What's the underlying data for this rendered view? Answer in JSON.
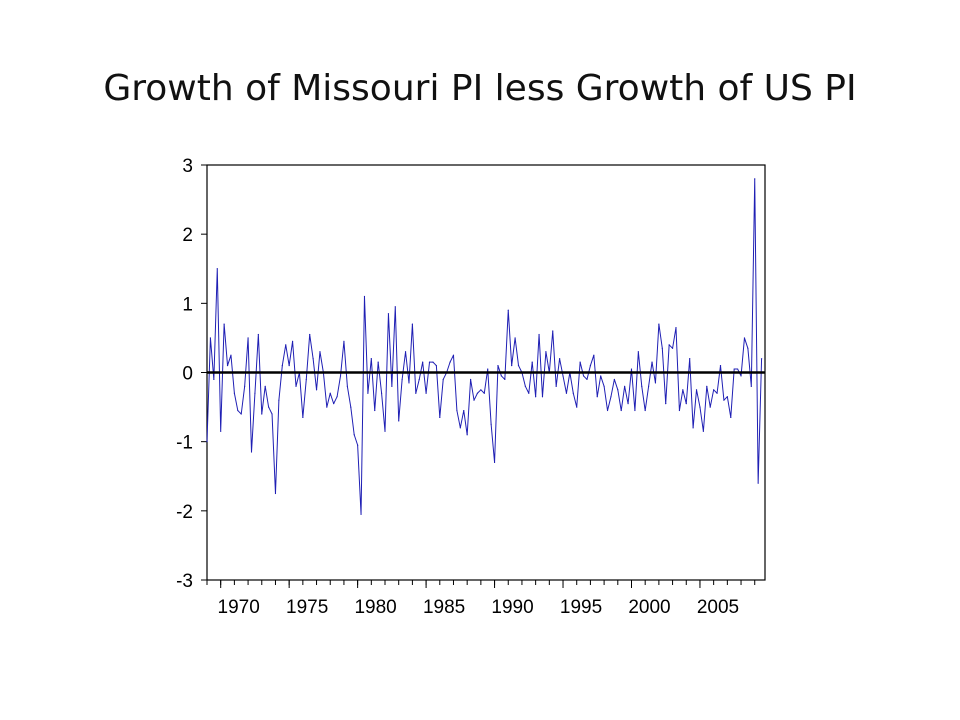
{
  "slide": {
    "title": "Growth of Missouri PI less Growth of US PI"
  },
  "colors": {
    "series": "#1f1fb4",
    "zero_line": "#000000",
    "frame": "#000000"
  },
  "chart_data": {
    "type": "line",
    "title": "Growth of Missouri PI less Growth of US PI",
    "xlabel": "",
    "ylabel": "",
    "xlim": [
      1969.0,
      2009.75
    ],
    "ylim": [
      -3,
      3
    ],
    "yticks": [
      3,
      2,
      1,
      0,
      -1,
      -2,
      -3
    ],
    "ytick_labels": [
      "3",
      "2",
      "1",
      "0",
      "-1",
      "-2",
      "-3"
    ],
    "xtick_labels": [
      "1970",
      "1975",
      "1980",
      "1985",
      "1990",
      "1995",
      "2000",
      "2005"
    ],
    "xtick_values": [
      1970,
      1975,
      1980,
      1985,
      1990,
      1995,
      2000,
      2005
    ],
    "frequency": "quarterly",
    "grid": false,
    "reference_line": 0,
    "series": [
      {
        "start": 1969.0,
        "step": 0.25,
        "values": [
          -1.0,
          0.5,
          -0.1,
          1.5,
          -0.85,
          0.7,
          0.1,
          0.25,
          -0.3,
          -0.55,
          -0.6,
          -0.2,
          0.5,
          -1.15,
          -0.3,
          0.55,
          -0.6,
          -0.2,
          -0.5,
          -0.6,
          -1.75,
          -0.4,
          0.1,
          0.4,
          0.1,
          0.45,
          -0.2,
          0.0,
          -0.65,
          -0.1,
          0.55,
          0.2,
          -0.25,
          0.3,
          0.0,
          -0.5,
          -0.3,
          -0.45,
          -0.35,
          -0.05,
          0.45,
          -0.2,
          -0.5,
          -0.9,
          -1.05,
          -2.05,
          1.1,
          -0.3,
          0.2,
          -0.55,
          0.15,
          -0.3,
          -0.85,
          0.85,
          -0.2,
          0.95,
          -0.7,
          -0.1,
          0.3,
          -0.15,
          0.7,
          -0.3,
          -0.1,
          0.15,
          -0.3,
          0.15,
          0.15,
          0.1,
          -0.65,
          -0.1,
          0.0,
          0.15,
          0.25,
          -0.55,
          -0.8,
          -0.55,
          -0.9,
          -0.1,
          -0.4,
          -0.3,
          -0.25,
          -0.3,
          0.05,
          -0.75,
          -1.3,
          0.1,
          -0.05,
          -0.1,
          0.9,
          0.1,
          0.5,
          0.1,
          0.0,
          -0.2,
          -0.3,
          0.15,
          -0.35,
          0.55,
          -0.35,
          0.3,
          0.0,
          0.6,
          -0.2,
          0.2,
          -0.05,
          -0.3,
          0.0,
          -0.3,
          -0.5,
          0.15,
          -0.05,
          -0.1,
          0.1,
          0.25,
          -0.35,
          -0.05,
          -0.2,
          -0.55,
          -0.35,
          -0.1,
          -0.25,
          -0.55,
          -0.2,
          -0.45,
          0.05,
          -0.55,
          0.3,
          -0.2,
          -0.55,
          -0.2,
          0.15,
          -0.15,
          0.7,
          0.35,
          -0.45,
          0.4,
          0.35,
          0.65,
          -0.55,
          -0.25,
          -0.45,
          0.2,
          -0.8,
          -0.25,
          -0.5,
          -0.85,
          -0.2,
          -0.5,
          -0.25,
          -0.3,
          0.1,
          -0.4,
          -0.35,
          -0.65,
          0.05,
          0.05,
          -0.05,
          0.5,
          0.35,
          -0.2,
          2.8,
          -1.6,
          0.2
        ]
      }
    ]
  }
}
